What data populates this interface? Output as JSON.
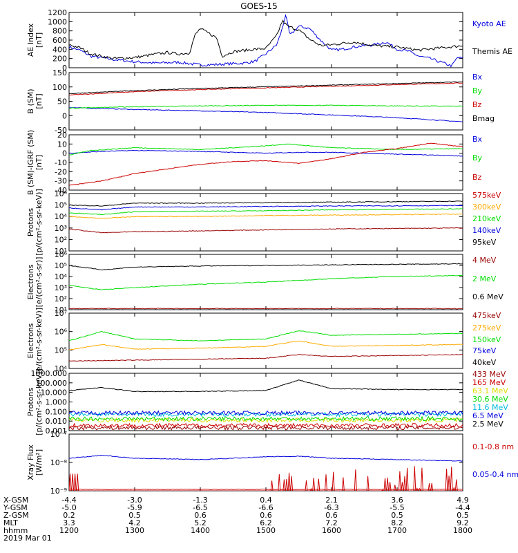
{
  "title": "GOES-15",
  "colors": {
    "black": "#000000",
    "blue": "#0000dd",
    "red": "#cc0000",
    "green": "#00dd00",
    "orange": "#ffaa00",
    "cyan": "#00bbdd",
    "yellow": "#dddd00",
    "darkred": "#990000"
  },
  "chart_data": [
    {
      "type": "line",
      "id": "ae",
      "ylabel": "AE Index\n[nT]",
      "yscale": "linear",
      "ylim": [
        0,
        1200
      ],
      "yticks": [
        "0",
        "200",
        "400",
        "600",
        "800",
        "1000",
        "1200"
      ],
      "series": [
        {
          "name": "Kyoto AE",
          "color": "blue",
          "labelColor": "blue",
          "x": [
            1200,
            1210,
            1220,
            1240,
            1300,
            1320,
            1340,
            1400,
            1415,
            1430,
            1440,
            1450,
            1500,
            1510,
            1515,
            1518,
            1522,
            1530,
            1540,
            1550,
            1600,
            1610,
            1620,
            1630,
            1640,
            1650,
            1700,
            1710,
            1720,
            1730,
            1740,
            1750,
            1755,
            1800
          ],
          "y": [
            450,
            380,
            250,
            180,
            130,
            100,
            120,
            60,
            70,
            90,
            100,
            140,
            300,
            500,
            850,
            1150,
            700,
            900,
            850,
            600,
            380,
            400,
            450,
            480,
            500,
            560,
            400,
            360,
            250,
            200,
            120,
            40,
            220,
            200
          ]
        },
        {
          "name": "Themis AE",
          "color": "black",
          "labelColor": "black",
          "x": [
            1200,
            1210,
            1220,
            1230,
            1240,
            1300,
            1310,
            1320,
            1330,
            1340,
            1350,
            1355,
            1400,
            1415,
            1420,
            1425,
            1430,
            1450,
            1500,
            1510,
            1515,
            1520,
            1530,
            1540,
            1550,
            1600,
            1620,
            1640,
            1700,
            1720,
            1740,
            1800
          ],
          "y": [
            500,
            430,
            300,
            250,
            200,
            220,
            260,
            300,
            330,
            300,
            320,
            700,
            850,
            650,
            250,
            300,
            350,
            400,
            420,
            700,
            1020,
            900,
            820,
            620,
            480,
            500,
            560,
            480,
            450,
            380,
            430,
            480
          ]
        }
      ]
    },
    {
      "type": "line",
      "id": "bsm",
      "ylabel": "B (SM)\n[nT]",
      "yscale": "linear",
      "ylim": [
        -60,
        150
      ],
      "yticks": [
        "-50",
        "0",
        "50",
        "100",
        "150"
      ],
      "series": [
        {
          "name": "Bx",
          "color": "blue",
          "labelColor": "blue",
          "x": [
            1200,
            1300,
            1400,
            1500,
            1600,
            1700,
            1800
          ],
          "y": [
            22,
            15,
            10,
            4,
            -5,
            -15,
            -30
          ]
        },
        {
          "name": "By",
          "color": "green",
          "labelColor": "green",
          "x": [
            1200,
            1300,
            1400,
            1500,
            1600,
            1700,
            1800
          ],
          "y": [
            20,
            25,
            28,
            30,
            30,
            28,
            27
          ]
        },
        {
          "name": "Bz",
          "color": "red",
          "labelColor": "red",
          "x": [
            1200,
            1300,
            1400,
            1500,
            1600,
            1700,
            1800
          ],
          "y": [
            68,
            80,
            88,
            94,
            100,
            106,
            112
          ]
        },
        {
          "name": "Bmag",
          "color": "black",
          "labelColor": "black",
          "x": [
            1200,
            1300,
            1400,
            1500,
            1600,
            1700,
            1800
          ],
          "y": [
            73,
            84,
            92,
            98,
            104,
            110,
            116
          ]
        }
      ]
    },
    {
      "type": "line",
      "id": "bigrf",
      "ylabel": "B (SM)-IGRF (SM)\n[nT]",
      "yscale": "linear",
      "ylim": [
        -40,
        20
      ],
      "yticks": [
        "-40",
        "-30",
        "-20",
        "-10",
        "0",
        "10",
        "20"
      ],
      "series": [
        {
          "name": "Bx",
          "color": "blue",
          "labelColor": "blue",
          "x": [
            1200,
            1230,
            1300,
            1400,
            1500,
            1530,
            1600,
            1700,
            1800
          ],
          "y": [
            0,
            2,
            3,
            2,
            0,
            1,
            1,
            -1,
            -3
          ]
        },
        {
          "name": "By",
          "color": "green",
          "labelColor": "green",
          "x": [
            1200,
            1220,
            1300,
            1400,
            1500,
            1520,
            1600,
            1700,
            1800
          ],
          "y": [
            -2,
            3,
            6,
            4,
            8,
            10,
            6,
            4,
            5
          ]
        },
        {
          "name": "Bz",
          "color": "red",
          "labelColor": "red",
          "x": [
            1200,
            1230,
            1300,
            1400,
            1430,
            1500,
            1530,
            1600,
            1630,
            1700,
            1730,
            1800
          ],
          "y": [
            -35,
            -30,
            -22,
            -12,
            -9,
            -8,
            -11,
            -6,
            1,
            5,
            11,
            7
          ]
        }
      ]
    },
    {
      "type": "line",
      "id": "protons",
      "ylabel": "Protons\n[p/(cm²-s-sr-keV)]",
      "yscale": "log",
      "ylim": [
        0,
        6
      ],
      "yticks": [
        "10¹",
        "10²",
        "10³",
        "10⁴",
        "10⁵",
        "10⁶"
      ],
      "series": [
        {
          "name": "575keV",
          "color": "black",
          "labelColor": "red",
          "x": [
            1200,
            1230,
            1300,
            1400,
            1500,
            1600,
            1700,
            1800
          ],
          "y": [
            4.8,
            4.7,
            5.0,
            5.0,
            5.05,
            5.1,
            5.15,
            5.2
          ]
        },
        {
          "name": "300keV",
          "color": "orange",
          "labelColor": "orange",
          "x": [
            1200,
            1230,
            1300,
            1400,
            1500,
            1600,
            1700,
            1800
          ],
          "y": [
            3.6,
            3.4,
            3.6,
            3.6,
            3.7,
            3.75,
            3.8,
            3.85
          ]
        },
        {
          "name": "210keV",
          "color": "green",
          "labelColor": "green",
          "x": [
            1200,
            1230,
            1300,
            1400,
            1500,
            1600,
            1700,
            1800
          ],
          "y": [
            4.0,
            3.8,
            4.1,
            4.15,
            4.2,
            4.3,
            4.35,
            4.4
          ]
        },
        {
          "name": "140keV",
          "color": "blue",
          "labelColor": "blue",
          "x": [
            1200,
            1230,
            1300,
            1400,
            1500,
            1600,
            1700,
            1800
          ],
          "y": [
            4.5,
            4.3,
            4.6,
            4.6,
            4.65,
            4.7,
            4.72,
            4.75
          ]
        },
        {
          "name": "95keV",
          "color": "darkred",
          "labelColor": "black",
          "x": [
            1200,
            1230,
            1300,
            1400,
            1500,
            1600,
            1700,
            1800
          ],
          "y": [
            2.3,
            1.9,
            2.0,
            2.1,
            2.2,
            2.3,
            2.35,
            2.4
          ]
        }
      ]
    },
    {
      "type": "line",
      "id": "electrons1",
      "ylabel": "Electrons\n[e/(cm²-s-sr)]",
      "yscale": "log",
      "ylim": [
        1,
        6
      ],
      "yticks": [
        "10¹",
        "10²",
        "10³",
        "10⁴",
        "10⁵",
        "10⁶"
      ],
      "series": [
        {
          "name": "4 MeV",
          "color": "darkred",
          "labelColor": "darkred",
          "x": [
            1200,
            1300,
            1400,
            1500,
            1600,
            1700,
            1800
          ],
          "y": [
            1.1,
            1.1,
            1.1,
            1.1,
            1.1,
            1.1,
            1.1
          ]
        },
        {
          "name": "2 MeV",
          "color": "green",
          "labelColor": "green",
          "x": [
            1200,
            1230,
            1300,
            1400,
            1500,
            1600,
            1700,
            1800
          ],
          "y": [
            3.2,
            2.8,
            3.0,
            3.3,
            3.5,
            3.8,
            4.0,
            4.1
          ]
        },
        {
          "name": "0.6 MeV",
          "color": "black",
          "labelColor": "black",
          "x": [
            1200,
            1230,
            1300,
            1400,
            1500,
            1600,
            1700,
            1800
          ],
          "y": [
            5.0,
            4.6,
            4.85,
            4.95,
            5.0,
            5.05,
            5.1,
            5.15
          ]
        }
      ]
    },
    {
      "type": "line",
      "id": "electrons2",
      "ylabel": "Electrons\n[e/(cm²-s-sr-keV)]",
      "yscale": "log",
      "ylim": [
        4,
        7
      ],
      "yticks": [
        "10⁴",
        "10⁵",
        "10⁶",
        "10⁷"
      ],
      "series": [
        {
          "name": "475keV",
          "color": "darkred",
          "labelColor": "darkred",
          "x": [
            1200,
            1300,
            1400,
            1500,
            1530,
            1600,
            1700,
            1800
          ],
          "y": [
            4.4,
            4.45,
            4.5,
            4.55,
            4.75,
            4.65,
            4.7,
            4.75
          ]
        },
        {
          "name": "275keV",
          "color": "orange",
          "labelColor": "orange",
          "x": [
            1200,
            1230,
            1300,
            1400,
            1500,
            1530,
            1600,
            1700,
            1800
          ],
          "y": [
            5.0,
            5.3,
            5.05,
            5.1,
            5.2,
            5.5,
            5.2,
            5.25,
            5.3
          ]
        },
        {
          "name": "150keV",
          "color": "green",
          "labelColor": "green",
          "x": [
            1200,
            1230,
            1300,
            1400,
            1500,
            1530,
            1600,
            1700,
            1800
          ],
          "y": [
            5.5,
            6.0,
            5.6,
            5.5,
            5.6,
            6.05,
            5.8,
            5.85,
            5.9
          ]
        },
        {
          "name": "75keV",
          "color": "blue",
          "labelColor": "blue"
        },
        {
          "name": "40keV",
          "color": "black",
          "labelColor": "black"
        }
      ]
    },
    {
      "type": "line",
      "id": "protons2",
      "ylabel": "Protons\n[p/(cm²-s-sr-keV)]",
      "yscale": "log",
      "ylim": [
        -3,
        3
      ],
      "yticks": [
        "0.001",
        "0.010",
        "0.100",
        "1.000",
        "10.000",
        "100.000",
        "1000.000"
      ],
      "series": [
        {
          "name": "433 MeV",
          "color": "darkred",
          "labelColor": "darkred",
          "x": [
            1200,
            1800
          ],
          "y": [
            -2.7,
            -2.7
          ]
        },
        {
          "name": "165 MeV",
          "color": "red",
          "labelColor": "red",
          "x": [
            1200,
            1800
          ],
          "y": [
            -2.45,
            -2.45
          ]
        },
        {
          "name": "63.1 MeV",
          "color": "yellow",
          "labelColor": "yellow",
          "x": [
            1200,
            1800
          ],
          "y": [
            -1.9,
            -1.9
          ]
        },
        {
          "name": "30.6 MeV",
          "color": "green",
          "labelColor": "green",
          "x": [
            1200,
            1800
          ],
          "y": [
            -1.75,
            -1.75
          ]
        },
        {
          "name": "11.6 MeV",
          "color": "cyan",
          "labelColor": "cyan",
          "x": [
            1200,
            1800
          ],
          "y": [
            -1.3,
            -1.3
          ]
        },
        {
          "name": "6.5 MeV",
          "color": "blue",
          "labelColor": "blue",
          "x": [
            1200,
            1800
          ],
          "y": [
            -1.15,
            -1.15
          ]
        },
        {
          "name": "2.5 MeV",
          "color": "black",
          "labelColor": "black",
          "x": [
            1200,
            1230,
            1300,
            1400,
            1500,
            1530,
            1600,
            1700,
            1800
          ],
          "y": [
            1.2,
            1.5,
            1.1,
            1.1,
            1.2,
            2.3,
            1.4,
            1.3,
            1.3
          ]
        }
      ]
    },
    {
      "type": "line",
      "id": "xray",
      "ylabel": "Xray Flux\n[W/m²]",
      "yscale": "log",
      "ylim": [
        -9,
        -7
      ],
      "yticks": [
        "10⁻⁹",
        "10⁻⁸",
        "10⁻⁷"
      ],
      "series": [
        {
          "name": "0.1-0.8 nm",
          "color": "red",
          "labelColor": "red",
          "x": [
            1200,
            1800
          ],
          "y": [
            -8.95,
            -8.95
          ]
        },
        {
          "name": "0.05-0.4 nm",
          "color": "blue",
          "labelColor": "blue",
          "x": [
            1200,
            1230,
            1300,
            1400,
            1500,
            1530,
            1600,
            1700,
            1800
          ],
          "y": [
            -7.85,
            -7.75,
            -7.85,
            -7.9,
            -7.8,
            -7.78,
            -7.85,
            -7.9,
            -7.95
          ]
        }
      ]
    }
  ],
  "x_axis": {
    "rows": [
      {
        "label": "X-GSM",
        "values": [
          "-4.4",
          "-3.0",
          "-1.3",
          "0.4",
          "2.1",
          "3.6",
          "4.9"
        ]
      },
      {
        "label": "Y-GSM",
        "values": [
          "-5.0",
          "-5.9",
          "-6.5",
          "-6.6",
          "-6.3",
          "-5.5",
          "-4.4"
        ]
      },
      {
        "label": "Z-GSM",
        "values": [
          "0.2",
          "0.5",
          "0.6",
          "0.6",
          "0.6",
          "0.5",
          "0.5"
        ]
      },
      {
        "label": "MLT",
        "values": [
          "3.3",
          "4.2",
          "5.2",
          "6.2",
          "7.2",
          "8.2",
          "9.2"
        ]
      },
      {
        "label": "hhmm",
        "values": [
          "1200",
          "1300",
          "1400",
          "1500",
          "1600",
          "1700",
          "1800"
        ]
      }
    ],
    "date": "2019 Mar 01",
    "xlim": [
      1200,
      1800
    ]
  }
}
